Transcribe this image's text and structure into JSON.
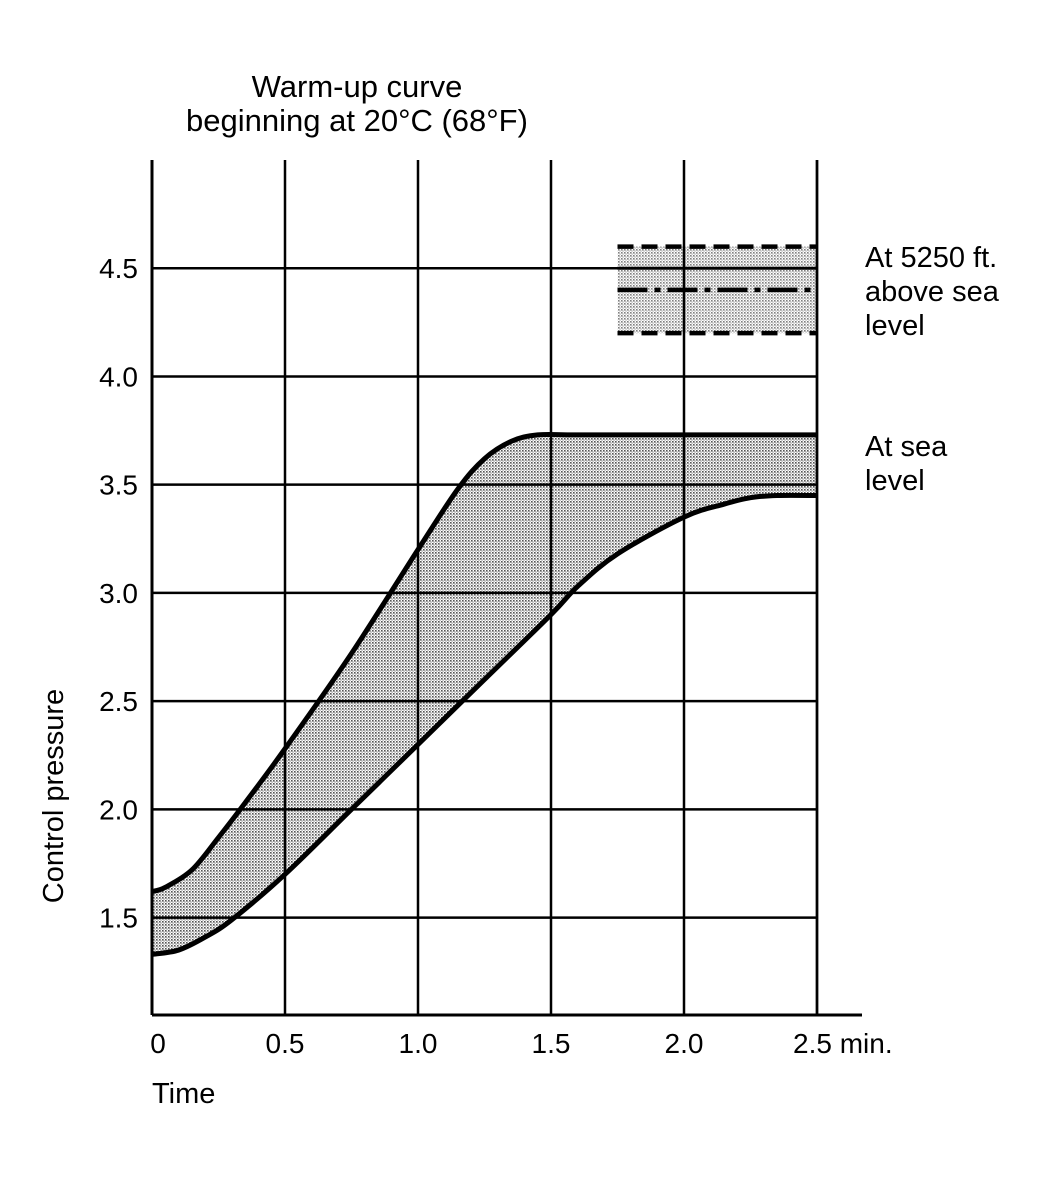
{
  "chart_data": {
    "type": "area",
    "title": "Warm-up curve\nbeginning at 20°C (68°F)",
    "title_lines": [
      "Warm-up curve",
      "beginning at 20°C (68°F)"
    ],
    "xlabel": "Time",
    "ylabel": "Control pressure",
    "xlim": [
      0,
      2.5
    ],
    "ylim": [
      1.05,
      5.0
    ],
    "x_ticks": [
      {
        "value": 0,
        "label": "0"
      },
      {
        "value": 0.5,
        "label": "0.5"
      },
      {
        "value": 1.0,
        "label": "1.0"
      },
      {
        "value": 1.5,
        "label": "1.5"
      },
      {
        "value": 2.0,
        "label": "2.0"
      },
      {
        "value": 2.5,
        "label": "2.5 min."
      }
    ],
    "y_ticks": [
      {
        "value": 1.5,
        "label": "1.5"
      },
      {
        "value": 2.0,
        "label": "2.0"
      },
      {
        "value": 2.5,
        "label": "2.5"
      },
      {
        "value": 3.0,
        "label": "3.0"
      },
      {
        "value": 3.5,
        "label": "3.5"
      },
      {
        "value": 4.0,
        "label": "4.0"
      },
      {
        "value": 4.5,
        "label": "4.5"
      }
    ],
    "grid": true,
    "sea_level_band": {
      "upper": {
        "x": [
          0,
          0.05,
          0.15,
          0.25,
          0.35,
          0.5,
          0.75,
          1.0,
          1.15,
          1.25,
          1.35,
          1.45,
          1.6,
          2.0,
          2.5
        ],
        "y": [
          1.62,
          1.64,
          1.72,
          1.87,
          2.03,
          2.28,
          2.72,
          3.2,
          3.48,
          3.62,
          3.7,
          3.73,
          3.73,
          3.73,
          3.73
        ]
      },
      "lower": {
        "x": [
          0,
          0.1,
          0.2,
          0.3,
          0.5,
          0.75,
          1.0,
          1.25,
          1.5,
          1.6,
          1.75,
          2.0,
          2.15,
          2.25,
          2.35,
          2.5
        ],
        "y": [
          1.33,
          1.35,
          1.41,
          1.49,
          1.7,
          2.0,
          2.3,
          2.6,
          2.9,
          3.03,
          3.18,
          3.35,
          3.41,
          3.44,
          3.45,
          3.45
        ]
      }
    },
    "altitude_lines": {
      "x_range": [
        1.75,
        2.5
      ],
      "upper_dashed": 4.6,
      "middle_solid": 4.5,
      "dash_dot": 4.4,
      "lower_dashed": 4.2
    },
    "annotations": {
      "altitude_label": [
        "At 5250 ft.",
        "above sea",
        "level"
      ],
      "sea_level_label": [
        "At sea",
        "level"
      ]
    },
    "colors": {
      "line": "#000000",
      "band_fill": "#c8c8c8",
      "background": "#ffffff"
    }
  }
}
